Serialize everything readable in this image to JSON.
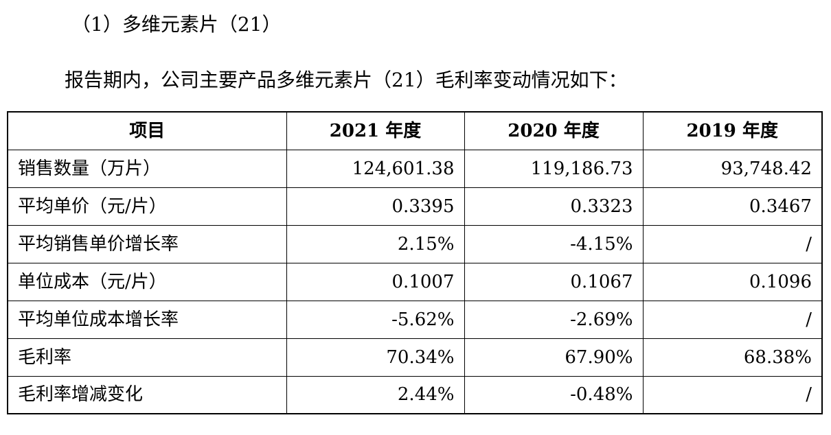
{
  "heading": "（1）多维元素片（21）",
  "intro": "报告期内，公司主要产品多维元素片（21）毛利率变动情况如下：",
  "table": {
    "headers": [
      "项目",
      "2021 年度",
      "2020 年度",
      "2019 年度"
    ],
    "rows": [
      {
        "label": "销售数量（万片）",
        "values": [
          "124,601.38",
          "119,186.73",
          "93,748.42"
        ]
      },
      {
        "label": "平均单价（元/片）",
        "values": [
          "0.3395",
          "0.3323",
          "0.3467"
        ]
      },
      {
        "label": "平均销售单价增长率",
        "values": [
          "2.15%",
          "-4.15%",
          "/"
        ]
      },
      {
        "label": "单位成本（元/片）",
        "values": [
          "0.1007",
          "0.1067",
          "0.1096"
        ]
      },
      {
        "label": "平均单位成本增长率",
        "values": [
          "-5.62%",
          "-2.69%",
          "/"
        ]
      },
      {
        "label": "毛利率",
        "values": [
          "70.34%",
          "67.90%",
          "68.38%"
        ]
      },
      {
        "label": "毛利率增减变化",
        "values": [
          "2.44%",
          "-0.48%",
          "/"
        ]
      }
    ]
  }
}
